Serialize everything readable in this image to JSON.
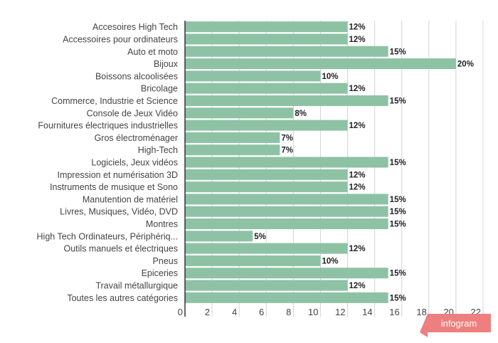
{
  "chart_data": {
    "type": "bar",
    "orientation": "horizontal",
    "title": "",
    "xlabel": "",
    "ylabel": "",
    "categories": [
      "Accesoires High Tech",
      "Accessoires pour ordinateurs",
      "Auto et moto",
      "Bijoux",
      "Boissons alcoolisées",
      "Bricolage",
      "Commerce, Industrie et Science",
      "Console de Jeux Vidéo",
      "Fournitures électriques industrielles",
      "Gros électroménager",
      "High-Tech",
      "Logiciels, Jeux vidéos",
      "Impression et numérisation 3D",
      "Instruments de musique et Sono",
      "Manutention de matériel",
      "Livres, Musiques, Vidéo, DVD",
      "Montres",
      "High Tech Ordinateurs, Périphériq...",
      "Outils manuels et électriques",
      "Pneus",
      "Epiceries",
      "Travail métallurgique",
      "Toutes les autres catégories"
    ],
    "values": [
      12,
      12,
      15,
      20,
      10,
      12,
      15,
      8,
      12,
      7,
      7,
      15,
      12,
      12,
      15,
      15,
      15,
      5,
      12,
      10,
      15,
      12,
      15
    ],
    "data_labels": [
      "12%",
      "12%",
      "15%",
      "20%",
      "10%",
      "12%",
      "15%",
      "8%",
      "12%",
      "7%",
      "7%",
      "15%",
      "12%",
      "12%",
      "15%",
      "15%",
      "15%",
      "5%",
      "12%",
      "10%",
      "15%",
      "12%",
      "15%"
    ],
    "xlim": [
      0,
      22
    ],
    "xticks": [
      0,
      2,
      4,
      6,
      8,
      10,
      12,
      14,
      16,
      18,
      20,
      22
    ],
    "xtick_labels": [
      "0",
      "2",
      "4",
      "6",
      "8",
      "10",
      "12",
      "14",
      "16",
      "18",
      "20",
      "22"
    ],
    "grid": true,
    "legend": "none",
    "colors": {
      "bar": "#8ec2a5",
      "grid": "#d4d4d4",
      "axis": "#333333",
      "badge": "#ee7f7f"
    }
  },
  "branding": {
    "watermark": "infogram"
  }
}
